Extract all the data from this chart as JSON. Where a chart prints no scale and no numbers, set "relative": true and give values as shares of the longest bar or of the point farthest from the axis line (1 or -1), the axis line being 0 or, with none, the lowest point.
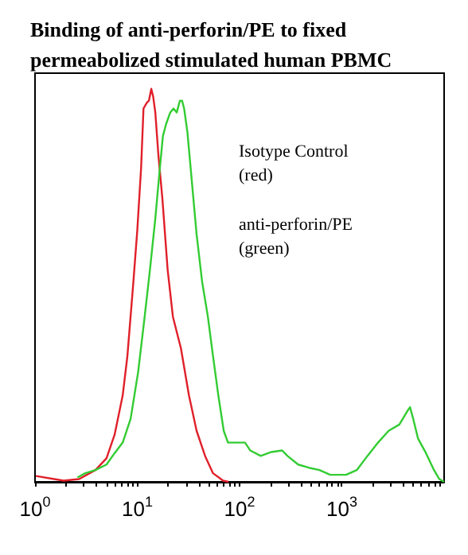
{
  "chart_data": {
    "type": "line",
    "title": "Binding of anti-perforin/PE to fixed\npermeabolized stimulated human PBMC",
    "annotations": [
      "Isotype Control\n(red)",
      "anti-perforin/PE\n(green)"
    ],
    "relative": true,
    "log": "x",
    "xlim": [
      1,
      10000
    ],
    "xticks": [
      {
        "value": 1,
        "label": "10$^{0}$"
      },
      {
        "value": 2,
        "label": null
      },
      {
        "value": 3,
        "label": null
      },
      {
        "value": 4,
        "label": null
      },
      {
        "value": 5,
        "label": null
      },
      {
        "value": 6,
        "label": null
      },
      {
        "value": 7,
        "label": null
      },
      {
        "value": 8,
        "label": null
      },
      {
        "value": 9,
        "label": null
      },
      {
        "value": 10,
        "label": "10$^{1}$"
      },
      {
        "value": 20,
        "label": null
      },
      {
        "value": 30,
        "label": null
      },
      {
        "value": 40,
        "label": null
      },
      {
        "value": 50,
        "label": null
      },
      {
        "value": 60,
        "label": null
      },
      {
        "value": 70,
        "label": null
      },
      {
        "value": 80,
        "label": null
      },
      {
        "value": 90,
        "label": null
      },
      {
        "value": 100,
        "label": "10$^{2}$"
      },
      {
        "value": 200,
        "label": null
      },
      {
        "value": 300,
        "label": null
      },
      {
        "value": 400,
        "label": null
      },
      {
        "value": 500,
        "label": null
      },
      {
        "value": 600,
        "label": null
      },
      {
        "value": 700,
        "label": null
      },
      {
        "value": 800,
        "label": null
      },
      {
        "value": 900,
        "label": null
      },
      {
        "value": 1000,
        "label": "10$^{3}$"
      },
      {
        "value": 2000,
        "label": null
      },
      {
        "value": 3000,
        "label": null
      },
      {
        "value": 4000,
        "label": null
      },
      {
        "value": 5000,
        "label": null
      },
      {
        "value": 6000,
        "label": null
      },
      {
        "value": 7000,
        "label": null
      },
      {
        "value": 8000,
        "label": null
      },
      {
        "value": 9000,
        "label": null
      }
    ],
    "tick_labels": "x",
    "series": [
      {
        "color": "#e0202a",
        "x": [
          1.02,
          1.9,
          2.7,
          3.9,
          5,
          6,
          7.2,
          8,
          9.1,
          10,
          10.9,
          11.5,
          12.4,
          13,
          13.7,
          14.3,
          15,
          16.1,
          17.6,
          19.8,
          22.3,
          26.7,
          32,
          38,
          46,
          55,
          69,
          78
        ],
        "values": [
          0.015,
          0.003,
          0.007,
          0.03,
          0.06,
          0.12,
          0.22,
          0.32,
          0.5,
          0.64,
          0.8,
          0.95,
          0.965,
          0.97,
          1,
          0.98,
          0.94,
          0.83,
          0.72,
          0.54,
          0.42,
          0.34,
          0.22,
          0.13,
          0.066,
          0.022,
          0.003,
          0
        ]
      },
      {
        "color": "#33cc33",
        "x": [
          2.6,
          3.1,
          3.9,
          5,
          6,
          7.2,
          8.6,
          10.2,
          11.8,
          13.3,
          15,
          16.5,
          17.8,
          19.1,
          21,
          22.6,
          24.3,
          26.1,
          27.4,
          28.7,
          30.9,
          34,
          38,
          43,
          49,
          55,
          62,
          70,
          77,
          89,
          113,
          127,
          161,
          205,
          261,
          294,
          374,
          475,
          603,
          770,
          1100,
          1400,
          1780,
          2260,
          2870,
          3650,
          4370,
          4640,
          4990,
          5560,
          6650,
          7960,
          8980,
          10000
        ],
        "values": [
          0.011,
          0.022,
          0.03,
          0.044,
          0.073,
          0.1,
          0.16,
          0.28,
          0.42,
          0.54,
          0.67,
          0.79,
          0.88,
          0.91,
          0.94,
          0.95,
          0.94,
          0.97,
          0.97,
          0.95,
          0.89,
          0.77,
          0.63,
          0.51,
          0.42,
          0.32,
          0.22,
          0.13,
          0.1,
          0.1,
          0.1,
          0.08,
          0.066,
          0.076,
          0.08,
          0.066,
          0.044,
          0.036,
          0.03,
          0.018,
          0.018,
          0.03,
          0.066,
          0.1,
          0.13,
          0.146,
          0.18,
          0.19,
          0.16,
          0.11,
          0.073,
          0.03,
          0.007,
          0
        ]
      }
    ]
  }
}
